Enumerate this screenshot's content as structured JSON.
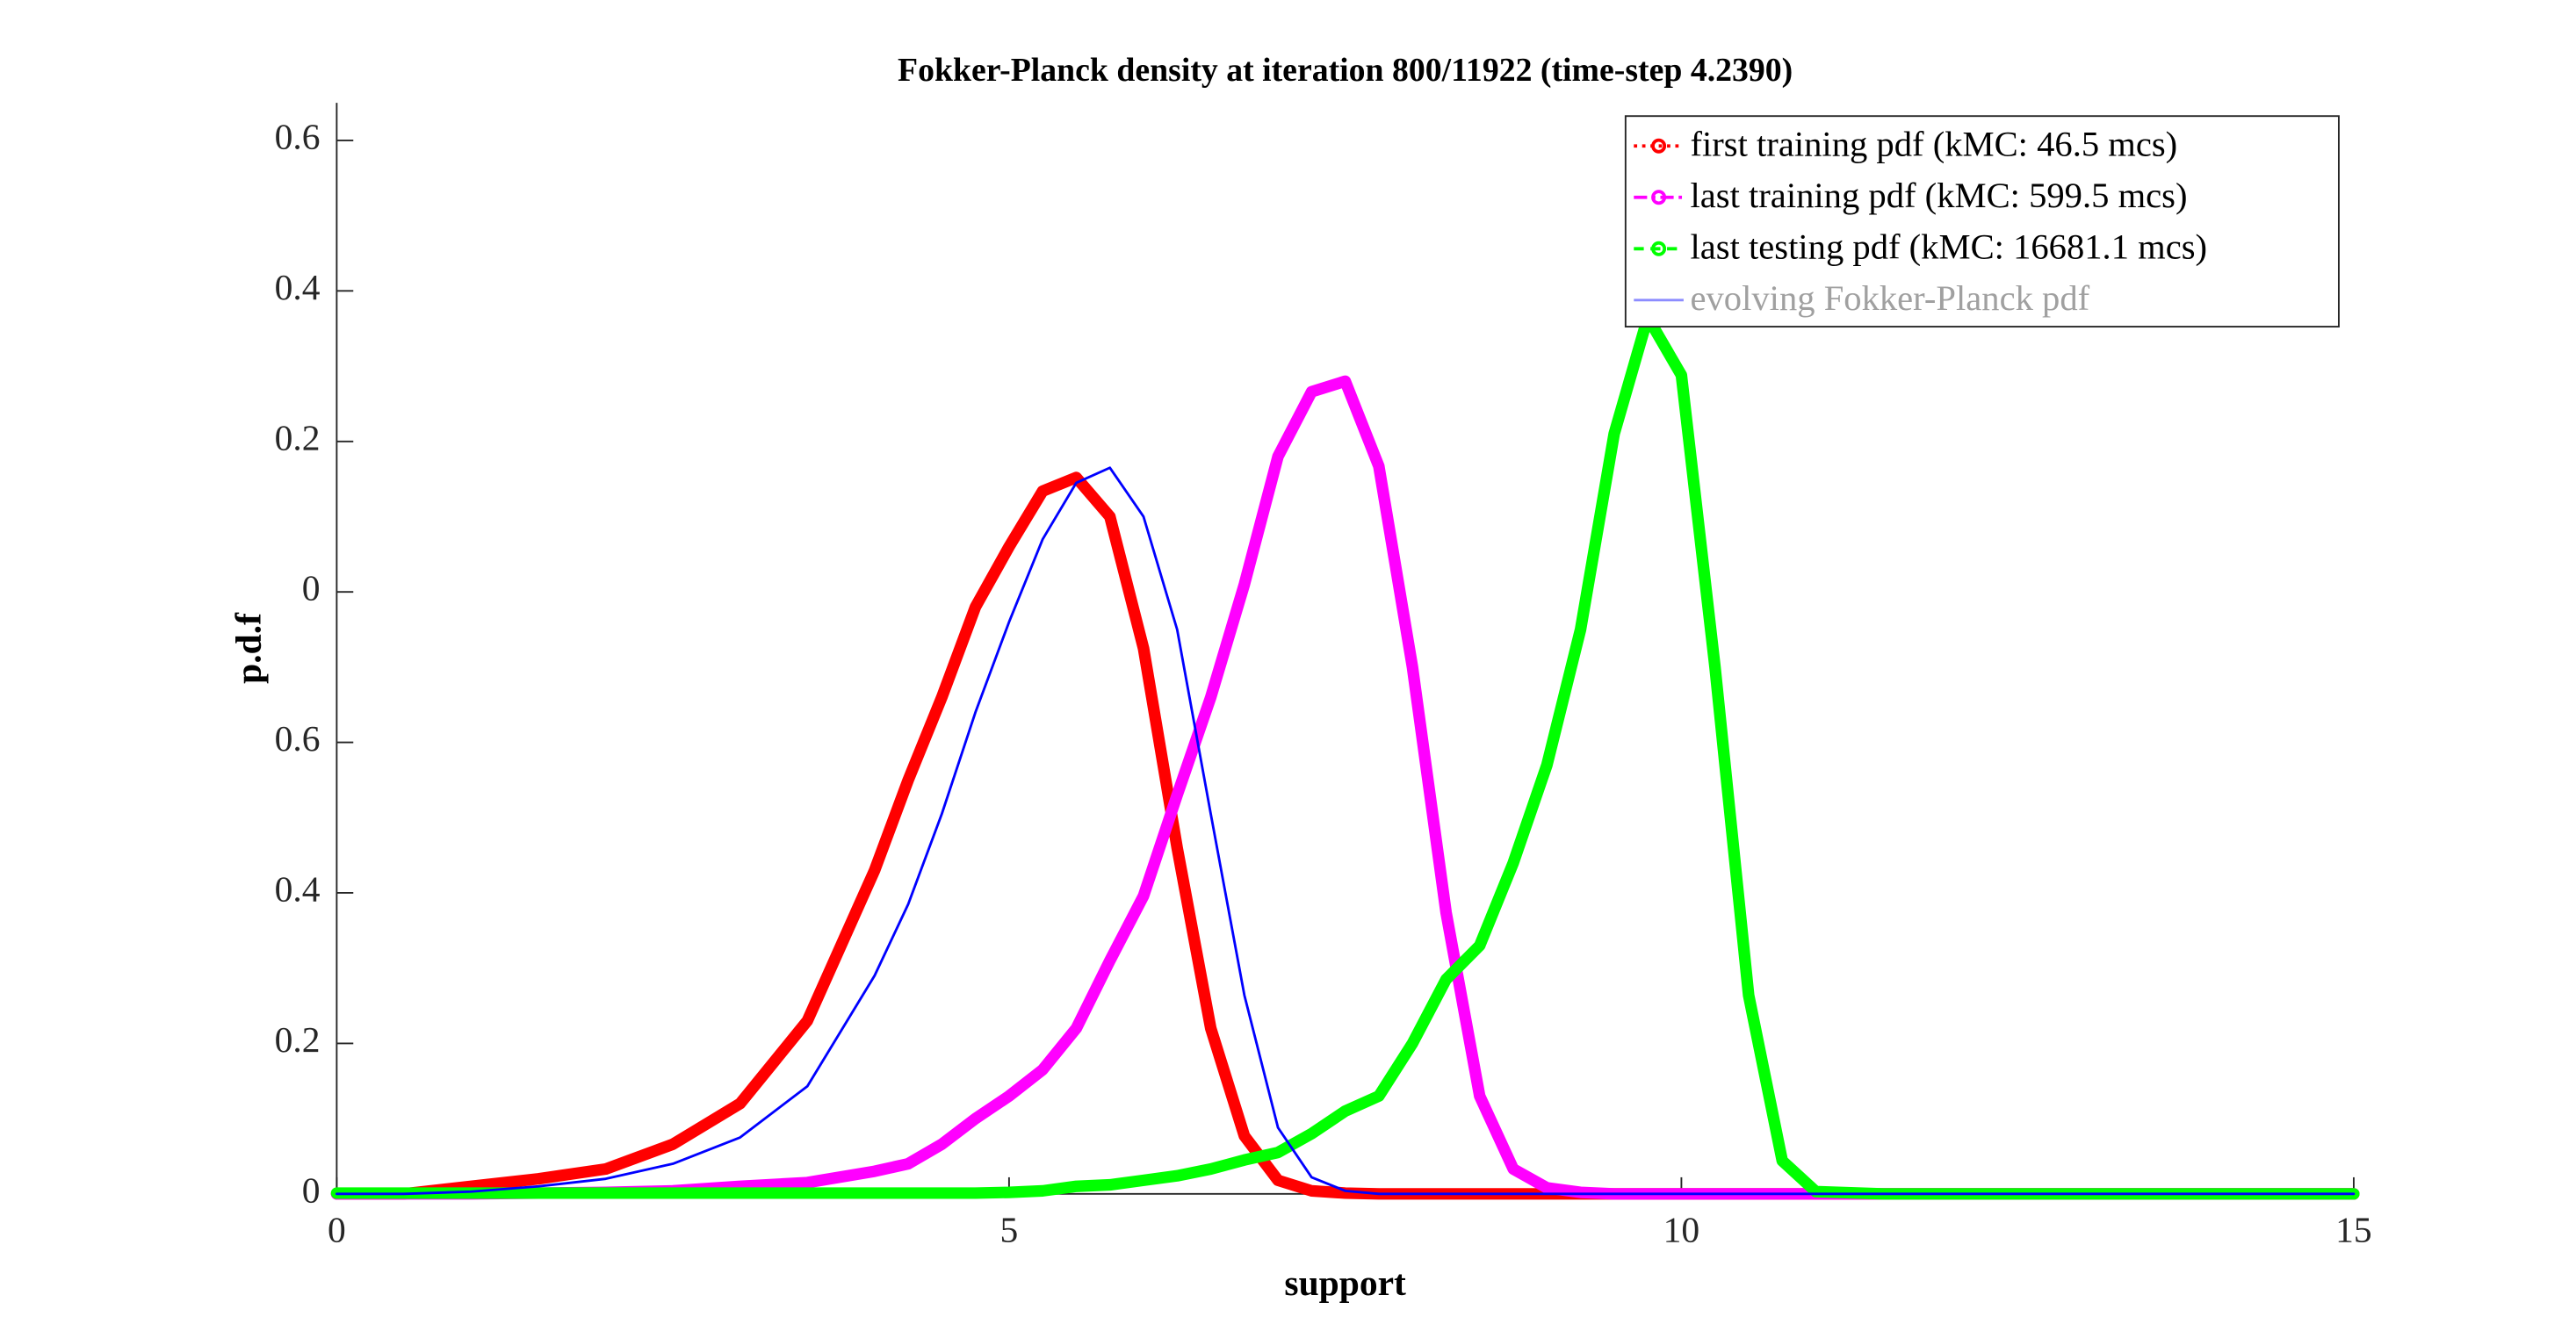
{
  "chart_data": {
    "type": "line",
    "title": "Fokker-Planck density at iteration 800/11922 (time-step 4.2390)",
    "xlabel": "support",
    "ylabel": "p.d.f",
    "xlim": [
      0,
      15
    ],
    "ylim": [
      0,
      1.45
    ],
    "xticks": [
      0,
      5,
      10,
      15
    ],
    "yticks": [
      0,
      0.2,
      0.4,
      0.6,
      {
        "value": 0.8,
        "label": "0"
      },
      {
        "value": 1.0,
        "label": "0.2"
      },
      {
        "value": 1.2,
        "label": "0.4"
      },
      {
        "value": 1.4,
        "label": "0.6"
      }
    ],
    "legend": "upper right",
    "x": [
      0,
      0.5,
      1,
      1.5,
      2,
      2.5,
      3,
      3.5,
      4,
      4.25,
      4.5,
      4.75,
      5,
      5.25,
      5.5,
      5.75,
      6,
      6.25,
      6.5,
      6.75,
      7,
      7.25,
      7.5,
      7.75,
      8,
      8.25,
      8.5,
      8.75,
      9,
      9.25,
      9.5,
      9.75,
      10,
      10.25,
      10.5,
      10.75,
      11,
      11.5,
      12,
      13,
      14,
      15
    ],
    "series": [
      {
        "name": "first training pdf (kMC: 46.5 mcs)",
        "color": "#ff0000",
        "values": [
          0,
          0,
          0.01,
          0.02,
          0.033,
          0.066,
          0.12,
          0.23,
          0.43,
          0.55,
          0.66,
          0.78,
          0.86,
          0.934,
          0.952,
          0.9,
          0.725,
          0.46,
          0.22,
          0.077,
          0.018,
          0.004,
          0.001,
          0,
          0,
          0,
          0,
          0,
          0,
          0,
          0,
          0,
          0,
          0,
          0,
          0,
          0,
          0,
          0,
          0,
          0,
          0
        ]
      },
      {
        "name": "last training pdf (kMC: 599.5 mcs)",
        "color": "#ff00ff",
        "values": [
          0,
          0,
          0,
          0.001,
          0.002,
          0.004,
          0.01,
          0.015,
          0.03,
          0.04,
          0.066,
          0.1,
          0.13,
          0.165,
          0.22,
          0.31,
          0.396,
          0.53,
          0.66,
          0.81,
          0.98,
          1.066,
          1.08,
          0.967,
          0.7,
          0.374,
          0.13,
          0.033,
          0.008,
          0.002,
          0,
          0,
          0,
          0,
          0,
          0,
          0,
          0,
          0,
          0,
          0,
          0
        ]
      },
      {
        "name": "last testing pdf (kMC: 16681.1 mcs)",
        "color": "#00ff00",
        "values": [
          0.001,
          0.001,
          0.001,
          0.001,
          0.001,
          0.001,
          0.001,
          0.001,
          0.001,
          0.001,
          0.001,
          0.001,
          0.002,
          0.004,
          0.01,
          0.012,
          0.018,
          0.024,
          0.033,
          0.045,
          0.055,
          0.08,
          0.11,
          0.13,
          0.2,
          0.285,
          0.33,
          0.44,
          0.57,
          0.75,
          1.01,
          1.165,
          1.088,
          0.7,
          0.264,
          0.044,
          0.003,
          0,
          0,
          0,
          0,
          0
        ]
      },
      {
        "name": "evolving Fokker-Planck pdf",
        "color": "#0000ff",
        "values": [
          0,
          0,
          0.003,
          0.01,
          0.02,
          0.04,
          0.075,
          0.143,
          0.29,
          0.385,
          0.505,
          0.64,
          0.76,
          0.87,
          0.945,
          0.965,
          0.9,
          0.75,
          0.505,
          0.264,
          0.088,
          0.022,
          0.004,
          0,
          0,
          0,
          0,
          0,
          0,
          0,
          0,
          0,
          0,
          0,
          0,
          0,
          0,
          0,
          0,
          0,
          0,
          0
        ]
      }
    ]
  }
}
